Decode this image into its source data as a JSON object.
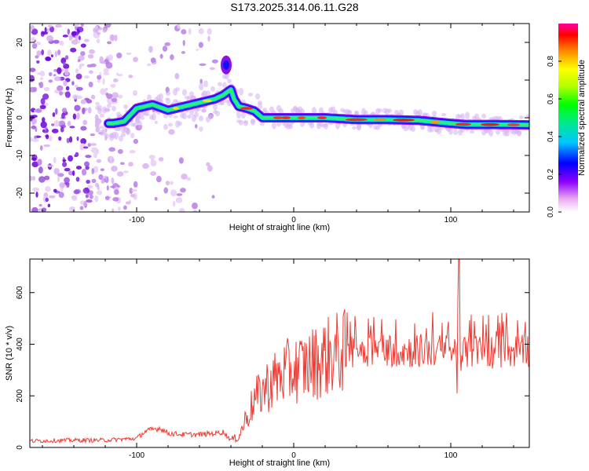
{
  "title": "S173.2025.314.06.11.G28",
  "colors": {
    "snr_line": "#ee3b33",
    "background": "#ffffff",
    "axis": "#000000"
  },
  "chart_data": [
    {
      "type": "heatmap",
      "title": "S173.2025.314.06.11.G28",
      "xlabel": "Height of straight line (km)",
      "ylabel": "Frequency (Hz)",
      "xlim": [
        -168,
        150
      ],
      "ylim": [
        -25,
        25
      ],
      "xticks": [
        -100,
        0,
        100
      ],
      "xtick_labels": [
        "-100",
        "0",
        "100"
      ],
      "yticks": [
        -20,
        -10,
        0,
        10,
        20
      ],
      "ytick_labels": [
        "-20",
        "-10",
        "0",
        "10",
        "20"
      ],
      "colorbar": {
        "label": "Normalized spectral amplitude",
        "range": [
          0,
          1
        ],
        "ticks": [
          0.0,
          0.2,
          0.4,
          0.6,
          0.8
        ],
        "tick_labels": [
          "0.0",
          "0.2",
          "0.4",
          "0.6",
          "0.8"
        ]
      },
      "ridge": {
        "x": [
          -115,
          -108,
          -100,
          -90,
          -80,
          -70,
          -60,
          -50,
          -45,
          -40,
          -38,
          -35,
          -30,
          -25,
          -20,
          0,
          20,
          40,
          60,
          80,
          100,
          110,
          130,
          150
        ],
        "freq": [
          -1.5,
          -1.0,
          2.5,
          3.5,
          2.0,
          3.0,
          4.0,
          5.0,
          6.0,
          7.5,
          5.0,
          3.0,
          2.5,
          1.8,
          0.0,
          0.0,
          0.0,
          -0.5,
          -0.5,
          -0.7,
          -1.5,
          -1.8,
          -1.8,
          -1.9
        ]
      },
      "noise_region_x": [
        -168,
        -110
      ],
      "secondary_feature": {
        "x": -43,
        "freq": 14
      }
    },
    {
      "type": "line",
      "title": "",
      "xlabel": "Height of straight line (km)",
      "ylabel": "SNR (10 * v/v)",
      "xlim": [
        -168,
        150
      ],
      "ylim": [
        0,
        730
      ],
      "xticks": [
        -100,
        0,
        100
      ],
      "xtick_labels": [
        "-100",
        "0",
        "100"
      ],
      "yticks": [
        0,
        200,
        400,
        600
      ],
      "ytick_labels": [
        "0",
        "200",
        "400",
        "600"
      ],
      "series": [
        {
          "name": "SNR",
          "x": [
            -168,
            -140,
            -120,
            -100,
            -95,
            -90,
            -85,
            -80,
            -70,
            -60,
            -50,
            -45,
            -40,
            -35,
            -30,
            -25,
            -20,
            -15,
            -10,
            -5,
            0,
            10,
            20,
            30,
            40,
            50,
            60,
            70,
            80,
            90,
            100,
            104,
            105,
            106,
            110,
            120,
            130,
            140,
            150
          ],
          "y": [
            25,
            28,
            28,
            35,
            60,
            70,
            75,
            55,
            50,
            50,
            55,
            60,
            30,
            40,
            120,
            180,
            220,
            250,
            270,
            290,
            300,
            320,
            350,
            370,
            380,
            380,
            380,
            375,
            375,
            375,
            370,
            375,
            720,
            360,
            370,
            375,
            370,
            375,
            380
          ]
        }
      ]
    }
  ]
}
